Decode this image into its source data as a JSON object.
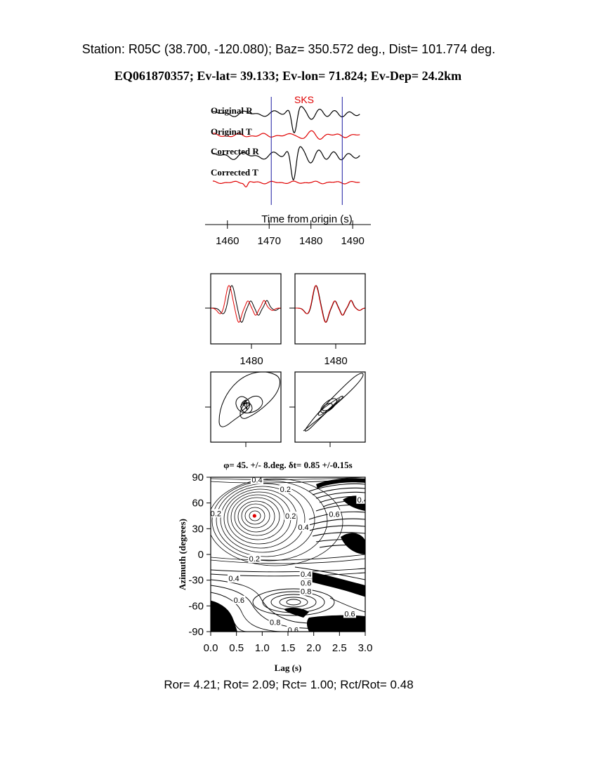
{
  "header": {
    "station_line": "Station: R05C (38.700, -120.080); Baz=  350.572 deg., Dist=  101.774 deg.",
    "event_line": "EQ061870357; Ev-lat=  39.133; Ev-lon=  71.824; Ev-Dep= 24.2km"
  },
  "footer": {
    "ratios_line": "Ror= 4.21; Rot= 2.09; Rct= 1.00; Rct/Rot= 0.48"
  },
  "colors": {
    "radial": "#000000",
    "transverse": "#e00000",
    "window": "#1a1aa0",
    "phase": "#e00000"
  },
  "chart_data": [
    {
      "type": "line",
      "panel": "seismograms",
      "phase_label": "SKS",
      "xlabel": "Time from origin (s)",
      "xlim": [
        1456,
        1493
      ],
      "xticks": [
        1460,
        1470,
        1480,
        1490
      ],
      "window_start": 1470.5,
      "window_end": 1487.5,
      "traces": [
        {
          "name": "Original R",
          "component": "R"
        },
        {
          "name": "Original T",
          "component": "T"
        },
        {
          "name": "Corrected R",
          "component": "R"
        },
        {
          "name": "Corrected T",
          "component": "T"
        }
      ]
    },
    {
      "type": "line",
      "panel": "waveform-comparison",
      "xticks": [
        1480,
        1480
      ]
    },
    {
      "type": "line",
      "panel": "particle-motion"
    },
    {
      "type": "heatmap",
      "panel": "grid-search",
      "title": "φ= 45. +/- 8.deg. δt= 0.85 +/-0.15s",
      "xlabel": "Lag (s)",
      "ylabel": "Azimuth (degrees)",
      "xlim": [
        0,
        3
      ],
      "ylim": [
        -90,
        90
      ],
      "xticks": [
        "0.0",
        "0.5",
        "1.0",
        "1.5",
        "2.0",
        "2.5",
        "3.0"
      ],
      "yticks": [
        "90",
        "60",
        "30",
        "0",
        "-30",
        "-60",
        "-90"
      ],
      "best_fit": {
        "lag": 0.85,
        "azimuth": 45
      },
      "contour_labels": [
        {
          "text": "0.4",
          "lag": 0.9,
          "azimuth": 87
        },
        {
          "text": "0.2",
          "lag": 1.45,
          "azimuth": 76
        },
        {
          "text": "0.4",
          "lag": 2.95,
          "azimuth": 64
        },
        {
          "text": "0.2",
          "lag": 0.1,
          "azimuth": 48
        },
        {
          "text": "0.2",
          "lag": 1.55,
          "azimuth": 45
        },
        {
          "text": "0.6",
          "lag": 2.4,
          "azimuth": 47
        },
        {
          "text": "0.4",
          "lag": 1.8,
          "azimuth": 32
        },
        {
          "text": "0.2",
          "lag": 0.85,
          "azimuth": -5
        },
        {
          "text": "0.4",
          "lag": 0.45,
          "azimuth": -28
        },
        {
          "text": "0.4",
          "lag": 1.85,
          "azimuth": -23
        },
        {
          "text": "0.6",
          "lag": 1.85,
          "azimuth": -33
        },
        {
          "text": "0.8",
          "lag": 1.85,
          "azimuth": -43
        },
        {
          "text": "0.6",
          "lag": 0.55,
          "azimuth": -53
        },
        {
          "text": "0.6",
          "lag": 2.7,
          "azimuth": -69
        },
        {
          "text": "0.8",
          "lag": 1.25,
          "azimuth": -79
        },
        {
          "text": "0.6",
          "lag": 1.6,
          "azimuth": -88
        }
      ]
    }
  ]
}
